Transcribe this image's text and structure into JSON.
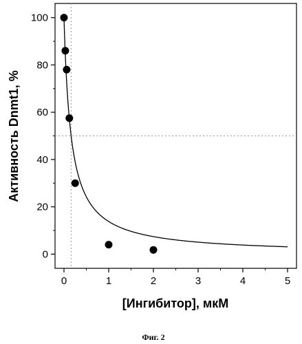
{
  "chart_data": {
    "type": "scatter",
    "xlabel": "[Ингибитор], мкМ",
    "ylabel": "Активность Dnmt1, %",
    "caption": "Фиг. 2",
    "xlim": [
      -0.2,
      5.2
    ],
    "ylim": [
      -6,
      106
    ],
    "x_ticks": [
      0,
      1,
      2,
      3,
      4,
      5
    ],
    "y_ticks": [
      0,
      20,
      40,
      60,
      80,
      100
    ],
    "grid": false,
    "series": [
      {
        "marker": "filled-circle",
        "x": [
          0,
          0.03,
          0.06,
          0.12,
          0.25,
          1,
          2
        ],
        "y": [
          100,
          86,
          78,
          57.5,
          30,
          4,
          1.8
        ]
      }
    ],
    "fit_curve": {
      "model": "ic50",
      "top": 100,
      "ic50": 0.16
    },
    "reference_lines": {
      "y": 50,
      "x": 0.16,
      "style": "dotted"
    }
  }
}
